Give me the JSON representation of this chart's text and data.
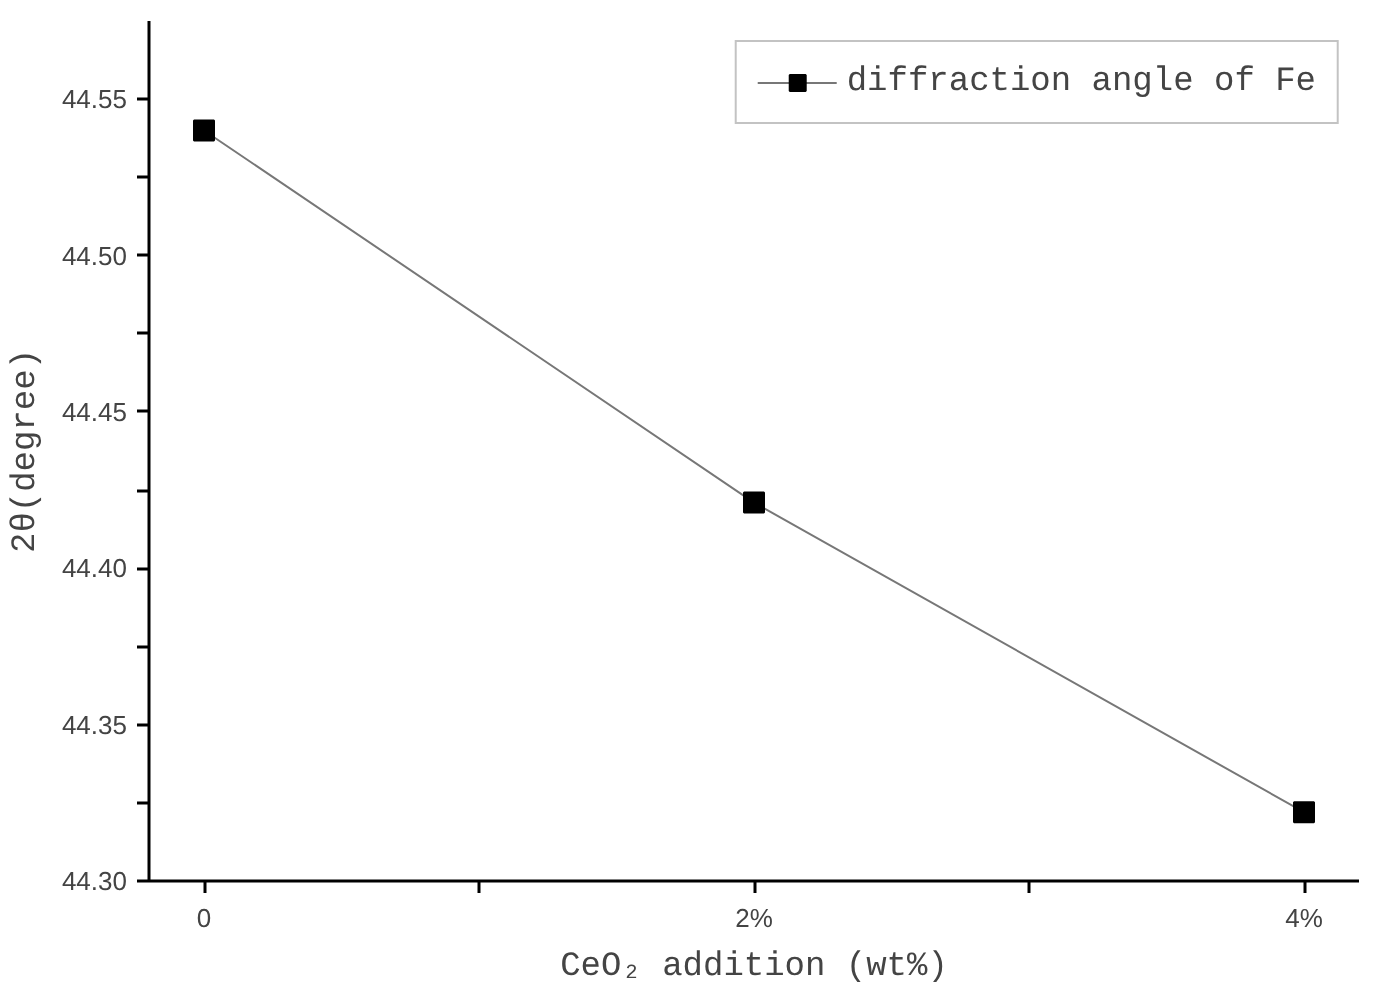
{
  "chart_data": {
    "type": "line",
    "xlabel": "CeO₂ addition (wt%)",
    "ylabel": "2θ(degree)",
    "x": [
      0,
      2,
      4
    ],
    "series": [
      {
        "name": "diffraction angle of Fe",
        "color": "#000000",
        "values": [
          44.54,
          44.421,
          44.322
        ]
      }
    ],
    "xlim": [
      -0.2,
      4.2
    ],
    "xticks": [
      0,
      {
        "value": 1,
        "label": null
      },
      {
        "value": 2,
        "label": "2%"
      },
      {
        "value": 3,
        "label": null
      },
      {
        "value": 4,
        "label": "4%"
      }
    ],
    "ylim": [
      44.3,
      44.575
    ],
    "yticks": [
      {
        "value": 44.3,
        "label": "44.30"
      },
      {
        "value": 44.325,
        "label": null
      },
      {
        "value": 44.35,
        "label": "44.35"
      },
      {
        "value": 44.375,
        "label": null
      },
      {
        "value": 44.4,
        "label": "44.40"
      },
      {
        "value": 44.425,
        "label": null
      },
      {
        "value": 44.45,
        "label": "44.45"
      },
      {
        "value": 44.475,
        "label": null
      },
      {
        "value": 44.5,
        "label": "44.50"
      },
      {
        "value": 44.525,
        "label": null
      },
      {
        "value": 44.55,
        "label": "44.55"
      }
    ],
    "marker": "square",
    "line_style": "solid",
    "grid": false,
    "legend": "top right"
  }
}
